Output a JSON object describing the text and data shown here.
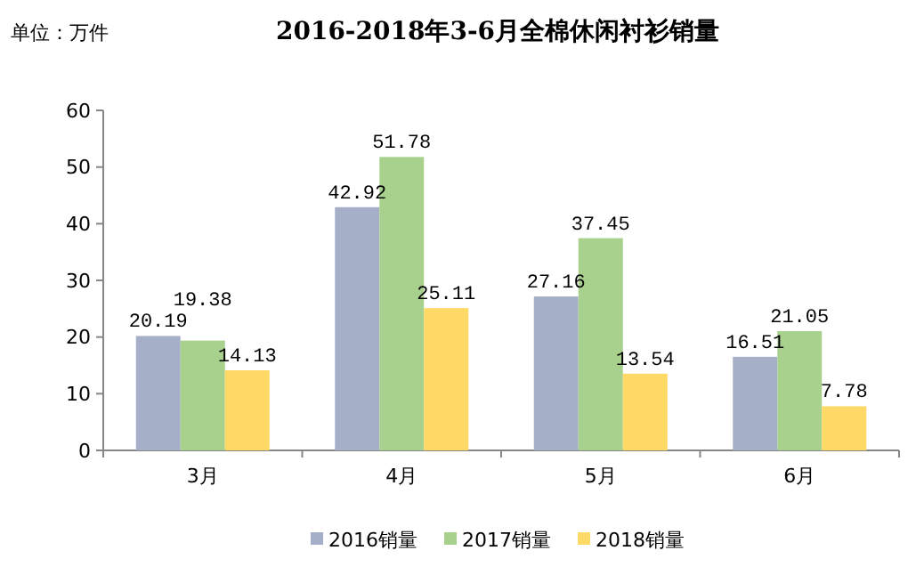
{
  "chart_data": {
    "type": "bar",
    "title": "2016-2018年3-6月全棉休闲衬衫销量",
    "annotations": [
      "单位：万件"
    ],
    "categories": [
      "3月",
      "4月",
      "5月",
      "6月"
    ],
    "series": [
      {
        "name": "2016销量",
        "color": "#a5b0c8",
        "values": [
          20.19,
          42.92,
          27.16,
          16.51
        ]
      },
      {
        "name": "2017销量",
        "color": "#a9d18e",
        "values": [
          19.38,
          51.78,
          37.45,
          21.05
        ]
      },
      {
        "name": "2018销量",
        "color": "#ffd966",
        "values": [
          14.13,
          25.11,
          13.54,
          7.78
        ]
      }
    ],
    "ylim": [
      0,
      60
    ],
    "yticks": [
      0,
      10,
      20,
      30,
      40,
      50,
      60
    ],
    "grid": false,
    "legend": "bottom",
    "data_labels": true
  }
}
